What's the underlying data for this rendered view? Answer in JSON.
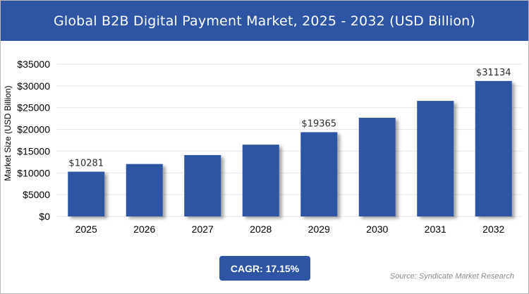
{
  "header": {
    "title": "Global B2B Digital Payment Market, 2025 - 2032 (USD Billion)"
  },
  "chart_data": {
    "type": "bar",
    "title": "Global B2B Digital Payment Market, 2025 - 2032 (USD Billion)",
    "categories": [
      "2025",
      "2026",
      "2027",
      "2028",
      "2029",
      "2030",
      "2031",
      "2032"
    ],
    "values": [
      10281,
      12050,
      14100,
      16500,
      19365,
      22680,
      26560,
      31134
    ],
    "data_labels": {
      "2025": "$10281",
      "2029": "$19365",
      "2032": "$31134"
    },
    "xlabel": "",
    "ylabel": "Market Size (USD Billion)",
    "ylim": [
      0,
      35000
    ],
    "yticks": [
      0,
      5000,
      10000,
      15000,
      20000,
      25000,
      30000,
      35000
    ],
    "ytick_labels": [
      "$0",
      "$5000",
      "$10000",
      "$15000",
      "$20000",
      "$25000",
      "$30000",
      "$35000"
    ],
    "grid": true,
    "bar_color": "#2e55a4"
  },
  "cagr": {
    "label": "CAGR: 17.15%"
  },
  "source": {
    "text": "Source: Syndicate Market Research"
  }
}
